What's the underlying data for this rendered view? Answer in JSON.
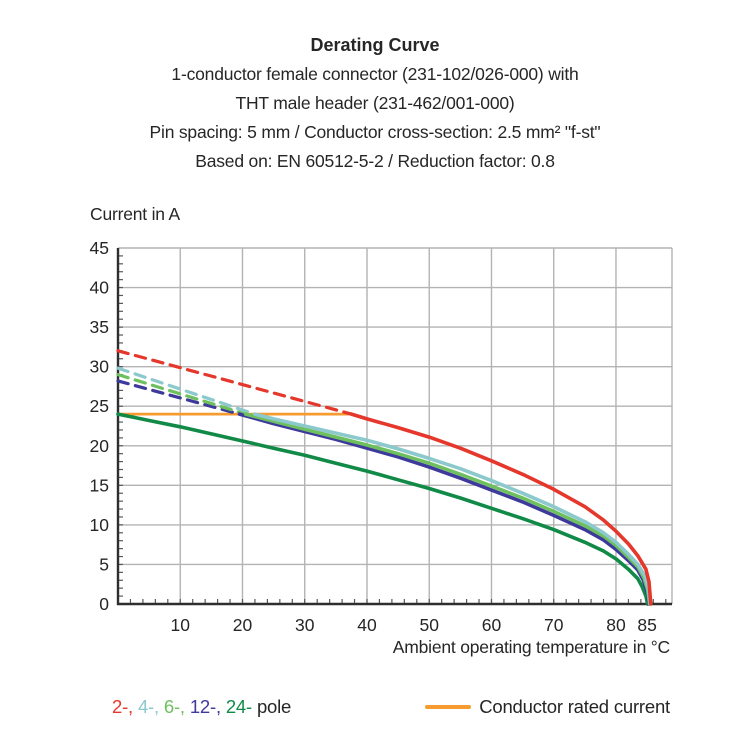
{
  "title": {
    "main": "Derating Curve",
    "subtitles": [
      "1-conductor female connector (231-102/026-000) with",
      "THT male header (231-462/001-000)",
      "Pin spacing: 5 mm / Conductor cross-section: 2.5 mm² \"f-st\"",
      "Based on: EN 60512-5-2 / Reduction factor: 0.8"
    ]
  },
  "legend": {
    "pole_items": [
      {
        "label": "2-",
        "color": "#e5372b"
      },
      {
        "label": "4-",
        "color": "#8cc9cc"
      },
      {
        "label": "6-",
        "color": "#6ec05f"
      },
      {
        "label": "12-",
        "color": "#3d3a9c"
      },
      {
        "label": "24-",
        "color": "#118a47"
      }
    ],
    "pole_suffix": "pole",
    "pole_suffix_color": "#262626",
    "rated_current_label": "Conductor rated current",
    "rated_current_color": "#f59b30"
  },
  "chart_data": {
    "type": "line",
    "title": "Derating Curve",
    "xlabel": "Ambient operating temperature in °C",
    "ylabel": "Current in A",
    "xlim": [
      0,
      89
    ],
    "ylim": [
      0,
      45
    ],
    "grid": true,
    "legend_position": "bottom",
    "x_major_ticks": [
      10,
      20,
      30,
      40,
      50,
      60,
      70,
      80,
      85
    ],
    "x_minor_step": 2,
    "y_major_ticks": [
      0,
      5,
      10,
      15,
      20,
      25,
      30,
      35,
      40,
      45
    ],
    "y_minor_step": 1,
    "x_gridlines": [
      10,
      20,
      30,
      40,
      50,
      60,
      70,
      80,
      89
    ],
    "y_gridlines": [
      5,
      10,
      15,
      20,
      25,
      30,
      35,
      40,
      45
    ],
    "grid_color": "#b3b3b3",
    "spine_color": "#2e2e2e",
    "tick_color": "#595959",
    "rated_current": {
      "name": "Conductor rated current",
      "color": "#f59b30",
      "value": 24,
      "x_range": [
        0,
        37.5
      ]
    },
    "series": [
      {
        "name": "2-pole",
        "color": "#e5372b",
        "dashed": [
          [
            0,
            32
          ],
          [
            37.5,
            24
          ]
        ],
        "solid": [
          [
            37.5,
            24
          ],
          [
            40,
            23.4
          ],
          [
            45,
            22.3
          ],
          [
            50,
            21.1
          ],
          [
            55,
            19.7
          ],
          [
            60,
            18.1
          ],
          [
            65,
            16.4
          ],
          [
            70,
            14.5
          ],
          [
            75,
            12.3
          ],
          [
            78,
            10.6
          ],
          [
            80,
            9.2
          ],
          [
            82,
            7.6
          ],
          [
            83.5,
            6.1
          ],
          [
            84.8,
            4.4
          ],
          [
            85.3,
            2.8
          ],
          [
            85.6,
            0
          ]
        ]
      },
      {
        "name": "4-pole",
        "color": "#8cc9cc",
        "dashed": [
          [
            0,
            29.8
          ],
          [
            22,
            24
          ]
        ],
        "solid": [
          [
            22,
            24
          ],
          [
            25,
            23.4
          ],
          [
            30,
            22.5
          ],
          [
            35,
            21.6
          ],
          [
            40,
            20.7
          ],
          [
            45,
            19.6
          ],
          [
            50,
            18.4
          ],
          [
            55,
            17.1
          ],
          [
            60,
            15.6
          ],
          [
            65,
            14.0
          ],
          [
            70,
            12.3
          ],
          [
            75,
            10.4
          ],
          [
            78,
            9.0
          ],
          [
            80,
            7.8
          ],
          [
            82,
            6.3
          ],
          [
            83.5,
            5.0
          ],
          [
            84.6,
            3.6
          ],
          [
            85.2,
            2.0
          ],
          [
            85.5,
            0
          ]
        ]
      },
      {
        "name": "6-pole",
        "color": "#6ec05f",
        "dashed": [
          [
            0,
            29.0
          ],
          [
            20.5,
            24
          ]
        ],
        "solid": [
          [
            20.5,
            24
          ],
          [
            25,
            23.1
          ],
          [
            30,
            22.1
          ],
          [
            35,
            21.1
          ],
          [
            40,
            20.1
          ],
          [
            45,
            19.0
          ],
          [
            50,
            17.8
          ],
          [
            55,
            16.4
          ],
          [
            60,
            14.9
          ],
          [
            65,
            13.4
          ],
          [
            70,
            11.7
          ],
          [
            75,
            9.9
          ],
          [
            78,
            8.6
          ],
          [
            80,
            7.4
          ],
          [
            82,
            5.9
          ],
          [
            83.5,
            4.7
          ],
          [
            84.5,
            3.3
          ],
          [
            85.1,
            1.8
          ],
          [
            85.4,
            0
          ]
        ]
      },
      {
        "name": "12-pole",
        "color": "#3d3a9c",
        "dashed": [
          [
            0,
            28.2
          ],
          [
            19.5,
            24
          ]
        ],
        "solid": [
          [
            19.5,
            24
          ],
          [
            25,
            22.8
          ],
          [
            30,
            21.8
          ],
          [
            35,
            20.8
          ],
          [
            40,
            19.7
          ],
          [
            45,
            18.6
          ],
          [
            50,
            17.3
          ],
          [
            55,
            15.9
          ],
          [
            60,
            14.4
          ],
          [
            65,
            12.9
          ],
          [
            70,
            11.2
          ],
          [
            75,
            9.4
          ],
          [
            78,
            8.1
          ],
          [
            80,
            6.9
          ],
          [
            82,
            5.5
          ],
          [
            83.5,
            4.3
          ],
          [
            84.4,
            3.0
          ],
          [
            85.0,
            1.5
          ],
          [
            85.3,
            0
          ]
        ]
      },
      {
        "name": "24-pole",
        "color": "#118a47",
        "dashed": null,
        "solid": [
          [
            0,
            24
          ],
          [
            5,
            23.2
          ],
          [
            10,
            22.4
          ],
          [
            15,
            21.5
          ],
          [
            20,
            20.6
          ],
          [
            25,
            19.7
          ],
          [
            30,
            18.8
          ],
          [
            35,
            17.8
          ],
          [
            40,
            16.8
          ],
          [
            45,
            15.7
          ],
          [
            50,
            14.6
          ],
          [
            55,
            13.4
          ],
          [
            60,
            12.1
          ],
          [
            65,
            10.8
          ],
          [
            70,
            9.4
          ],
          [
            75,
            7.8
          ],
          [
            78,
            6.7
          ],
          [
            80,
            5.7
          ],
          [
            82,
            4.4
          ],
          [
            83.5,
            3.2
          ],
          [
            84.2,
            2.2
          ],
          [
            84.8,
            1.0
          ],
          [
            85.1,
            0
          ]
        ]
      }
    ]
  }
}
